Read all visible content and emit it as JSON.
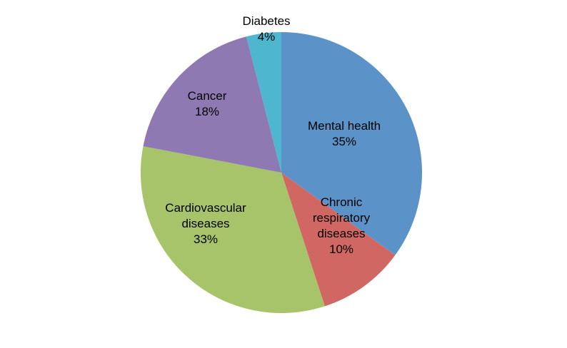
{
  "chart_data": {
    "type": "pie",
    "slices": [
      {
        "label": "Mental health",
        "value": 35,
        "value_label": "35%",
        "color": "#5b93c9"
      },
      {
        "label": "Chronic respiratory diseases",
        "label_lines": [
          "Chronic",
          "respiratory",
          "diseases"
        ],
        "value": 10,
        "value_label": "10%",
        "color": "#d16763"
      },
      {
        "label": "Cardiovascular diseases",
        "label_lines": [
          "Cardiovascular",
          "diseases"
        ],
        "value": 33,
        "value_label": "33%",
        "color": "#a8c46a"
      },
      {
        "label": "Cancer",
        "value": 18,
        "value_label": "18%",
        "color": "#8f79b3"
      },
      {
        "label": "Diabetes",
        "value": 4,
        "value_label": "4%",
        "color": "#4fb6cf"
      }
    ],
    "start_angle": "12 o'clock",
    "direction": "clockwise",
    "legend": "none"
  }
}
